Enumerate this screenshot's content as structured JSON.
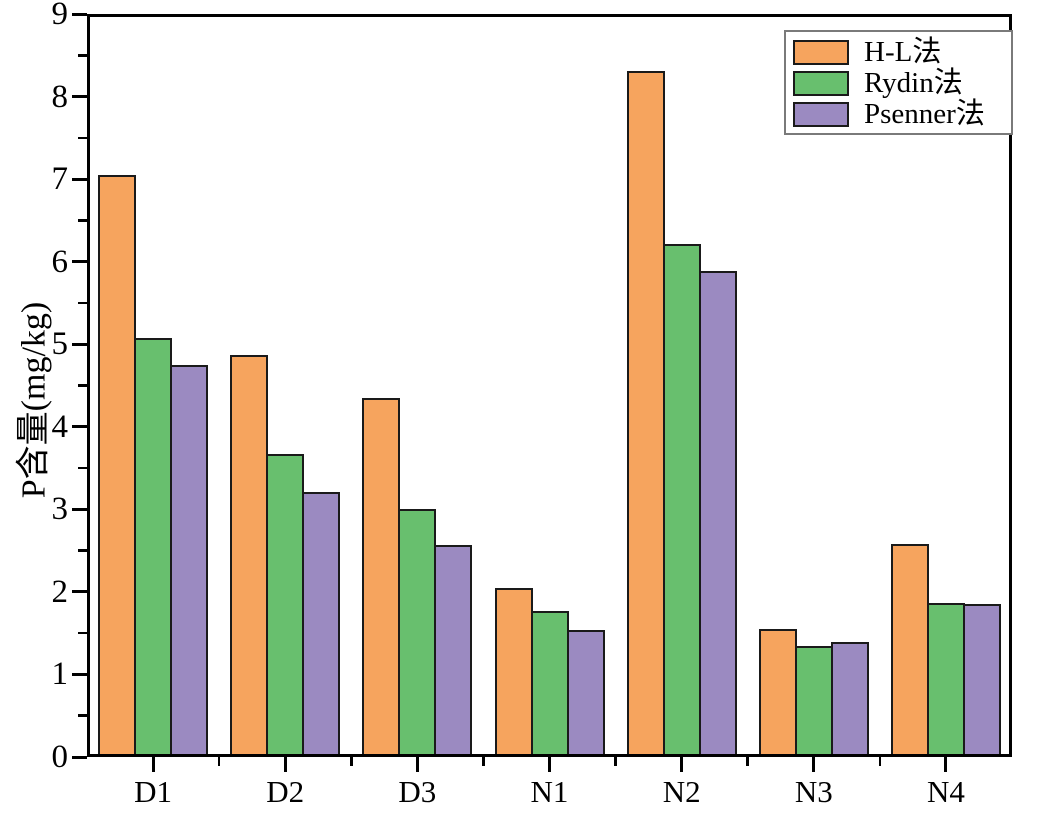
{
  "chart_data": {
    "type": "bar",
    "title": "",
    "categories": [
      "D1",
      "D2",
      "D3",
      "N1",
      "N2",
      "N3",
      "N4"
    ],
    "series": [
      {
        "name": "H-L法",
        "color": "#F6A45E",
        "values": [
          7.05,
          4.87,
          4.35,
          2.05,
          8.31,
          1.55,
          2.58
        ]
      },
      {
        "name": "Rydin法",
        "color": "#68BF6E",
        "values": [
          5.07,
          3.67,
          3.0,
          1.77,
          6.21,
          1.35,
          1.86
        ]
      },
      {
        "name": "Psenner法",
        "color": "#9B8AC1",
        "values": [
          4.75,
          3.21,
          2.57,
          1.54,
          5.89,
          1.39,
          1.85
        ]
      }
    ],
    "xlabel": "",
    "ylabel": "P含量(mg/kg)",
    "ylim": [
      0,
      9
    ],
    "ytick_step": 1,
    "yminor_step": 0.5,
    "ytick_labels": [
      "0",
      "1",
      "2",
      "3",
      "4",
      "5",
      "6",
      "7",
      "8",
      "9"
    ],
    "grid": false,
    "legend_position": "top-right",
    "bar_outline_color": "#1a1a1a",
    "axis_color": "#000000",
    "background_color": "#ffffff"
  }
}
